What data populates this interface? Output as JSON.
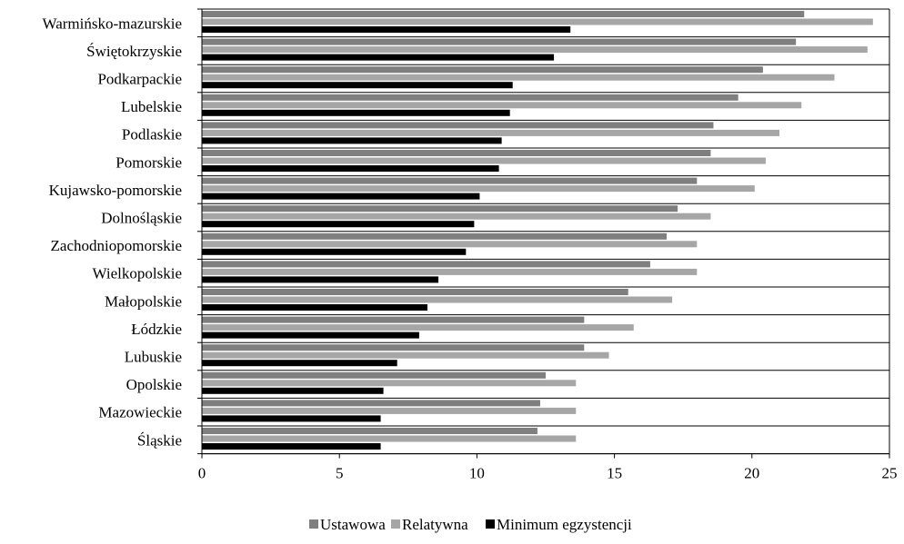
{
  "chart_data": {
    "type": "bar",
    "orientation": "horizontal",
    "categories": [
      "Warmińsko-mazurskie",
      "Świętokrzyskie",
      "Podkarpackie",
      "Lubelskie",
      "Podlaskie",
      "Pomorskie",
      "Kujawsko-pomorskie",
      "Dolnośląskie",
      "Zachodniopomorskie",
      "Wielkopolskie",
      "Małopolskie",
      "Łódzkie",
      "Lubuskie",
      "Opolskie",
      "Mazowieckie",
      "Śląskie"
    ],
    "series": [
      {
        "name": "Ustawowa",
        "color": "#7f7f7f",
        "values": [
          21.9,
          21.6,
          20.4,
          19.5,
          18.6,
          18.5,
          18.0,
          17.3,
          16.9,
          16.3,
          15.5,
          13.9,
          13.9,
          12.5,
          12.3,
          12.2
        ]
      },
      {
        "name": "Relatywna",
        "color": "#a6a6a6",
        "values": [
          24.4,
          24.2,
          23.0,
          21.8,
          21.0,
          20.5,
          20.1,
          18.5,
          18.0,
          18.0,
          17.1,
          15.7,
          14.8,
          13.6,
          13.6,
          13.6
        ]
      },
      {
        "name": "Minimum egzystencji",
        "color": "#000000",
        "values": [
          13.4,
          12.8,
          11.3,
          11.2,
          10.9,
          10.8,
          10.1,
          9.9,
          9.6,
          8.6,
          8.2,
          7.9,
          7.1,
          6.6,
          6.5,
          6.5
        ]
      }
    ],
    "xlim": [
      0,
      25
    ],
    "xticks": [
      "0",
      "5",
      "10",
      "15",
      "20",
      "25"
    ],
    "grid": "horizontal",
    "legend_position": "bottom"
  }
}
